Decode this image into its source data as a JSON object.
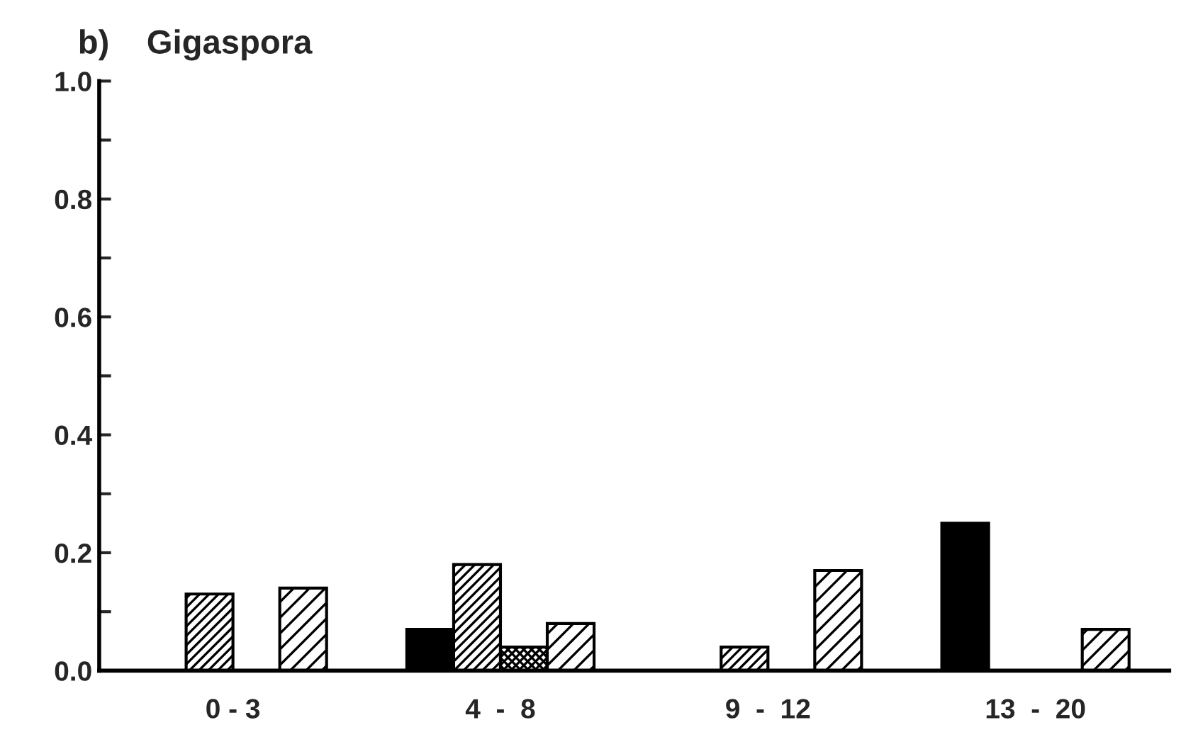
{
  "chart_data": {
    "type": "bar",
    "title": "b)    Gigaspora",
    "categories": [
      "0 - 3",
      "4  -  8",
      "9  -  12",
      "13  -  20"
    ],
    "series": [
      {
        "color": "#000000",
        "values": [
          0,
          0.07,
          0,
          0.25
        ]
      },
      {
        "color": "#000000",
        "values": [
          0.13,
          0.18,
          0.04,
          0
        ]
      },
      {
        "color": "#000000",
        "values": [
          0,
          0.04,
          0,
          0
        ]
      },
      {
        "color": "#000000",
        "values": [
          0.14,
          0.08,
          0.17,
          0.07
        ]
      }
    ],
    "ylim": [
      0,
      1.0
    ],
    "yticks": [
      {
        "value": 0,
        "label": "0.0"
      },
      {
        "value": 0.1,
        "label": null
      },
      {
        "value": 0.2,
        "label": "0.2"
      },
      {
        "value": 0.3,
        "label": null
      },
      {
        "value": 0.4,
        "label": "0.4"
      },
      {
        "value": 0.5,
        "label": null
      },
      {
        "value": 0.6,
        "label": "0.6"
      },
      {
        "value": 0.7,
        "label": null
      },
      {
        "value": 0.8,
        "label": "0.8"
      },
      {
        "value": 0.9,
        "label": null
      },
      {
        "value": 1.0,
        "label": "1.0"
      }
    ],
    "grid": false,
    "legend": false
  }
}
